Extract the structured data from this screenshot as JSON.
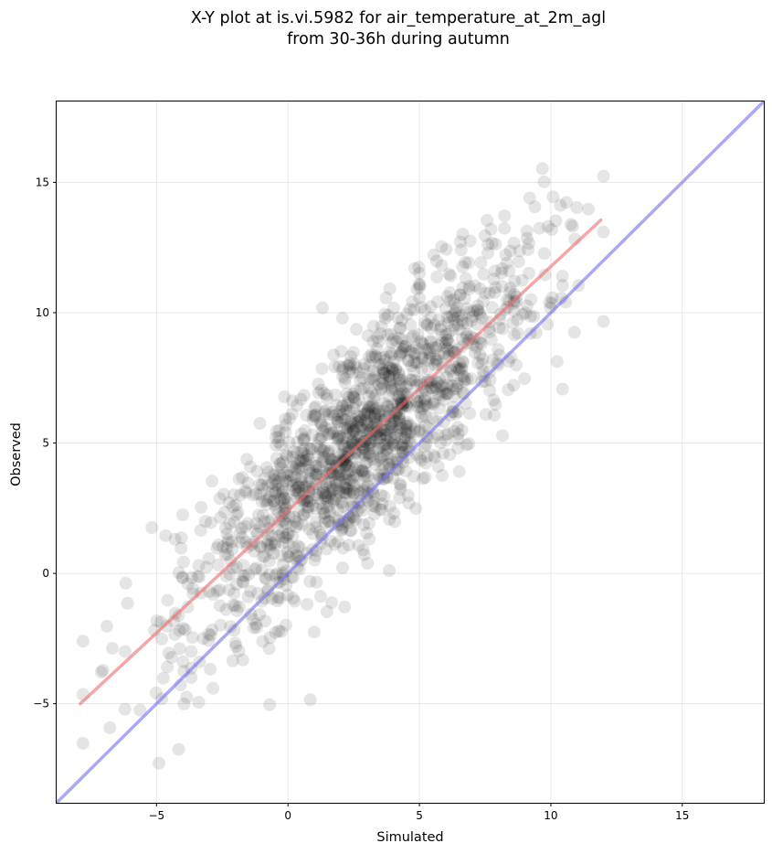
{
  "chart_data": {
    "type": "scatter",
    "title": "X-Y plot at is.vi.5982 for air_temperature_at_2m_agl",
    "subtitle": "from 30-36h during autumn",
    "xlabel": "Simulated",
    "ylabel": "Observed",
    "xlim": [
      -8.8,
      18.1
    ],
    "ylim": [
      -8.8,
      18.1
    ],
    "xticks": [
      -5,
      0,
      5,
      10,
      15
    ],
    "yticks": [
      -5,
      0,
      5,
      10,
      15
    ],
    "xtick_labels": [
      "−5",
      "0",
      "5",
      "10",
      "15"
    ],
    "ytick_labels": [
      "−5",
      "0",
      "5",
      "10",
      "15"
    ],
    "grid": true,
    "point_color": "#000000",
    "point_opacity": 0.1,
    "n_points": 1500,
    "scatter_model": {
      "slope": 0.937,
      "intercept": 2.4,
      "noise_sd": 2.0,
      "x_mean": 2.8,
      "x_sd": 3.4,
      "x_min": -7.8,
      "x_max": 12.0,
      "seed": 5982
    },
    "fit_line": {
      "color": "#ef6a6a",
      "x": [
        -7.9,
        11.9
      ],
      "y": [
        -5.0,
        13.55
      ]
    },
    "identity_line": {
      "color": "#6f6ff0",
      "x": [
        -8.8,
        18.1
      ],
      "y": [
        -8.8,
        18.1
      ]
    }
  }
}
